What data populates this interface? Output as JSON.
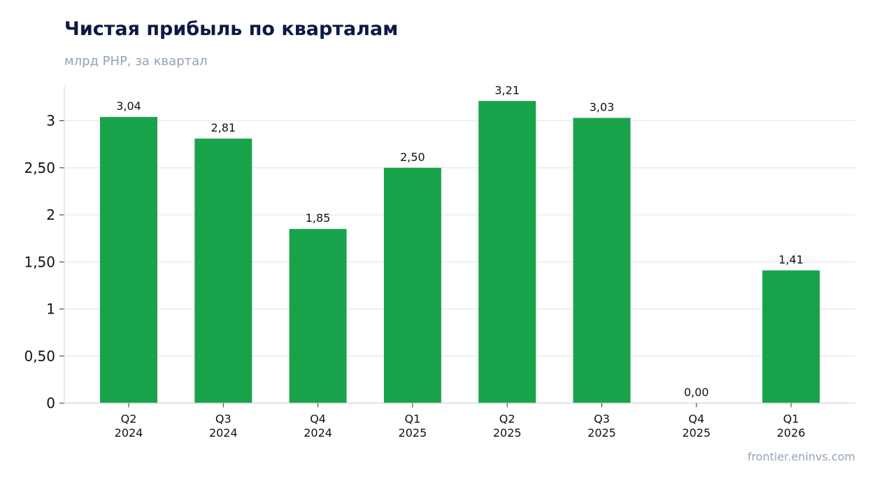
{
  "header": {
    "title": "Чистая прибыль по кварталам",
    "subtitle": "млрд РНР, за квартал"
  },
  "footer": {
    "source": "frontier.eninvs.com"
  },
  "chart_data": {
    "type": "bar",
    "title": "Чистая прибыль по кварталам",
    "subtitle": "млрд РНР, за квартал",
    "xlabel": "",
    "ylabel": "",
    "categories": [
      [
        "Q2",
        "2024"
      ],
      [
        "Q3",
        "2024"
      ],
      [
        "Q4",
        "2024"
      ],
      [
        "Q1",
        "2025"
      ],
      [
        "Q2",
        "2025"
      ],
      [
        "Q3",
        "2025"
      ],
      [
        "Q4",
        "2025"
      ],
      [
        "Q1",
        "2026"
      ]
    ],
    "values": [
      3.04,
      2.81,
      1.85,
      2.5,
      3.21,
      3.03,
      0.0,
      1.41
    ],
    "data_labels": [
      "3,04",
      "2,81",
      "1,85",
      "2,50",
      "3,21",
      "3,03",
      "0,00",
      "1,41"
    ],
    "yticks": [
      0,
      0.5,
      1,
      1.5,
      2,
      2.5,
      3
    ],
    "ytick_labels": [
      "0",
      "0,50",
      "1",
      "1,50",
      "2",
      "2,50",
      "3"
    ],
    "ylim": [
      0,
      3.375
    ],
    "grid": true,
    "legend": "none",
    "bar_color": "#18a34a",
    "grid_color": "#e5e7eb",
    "axis_color": "#d1d5db"
  }
}
